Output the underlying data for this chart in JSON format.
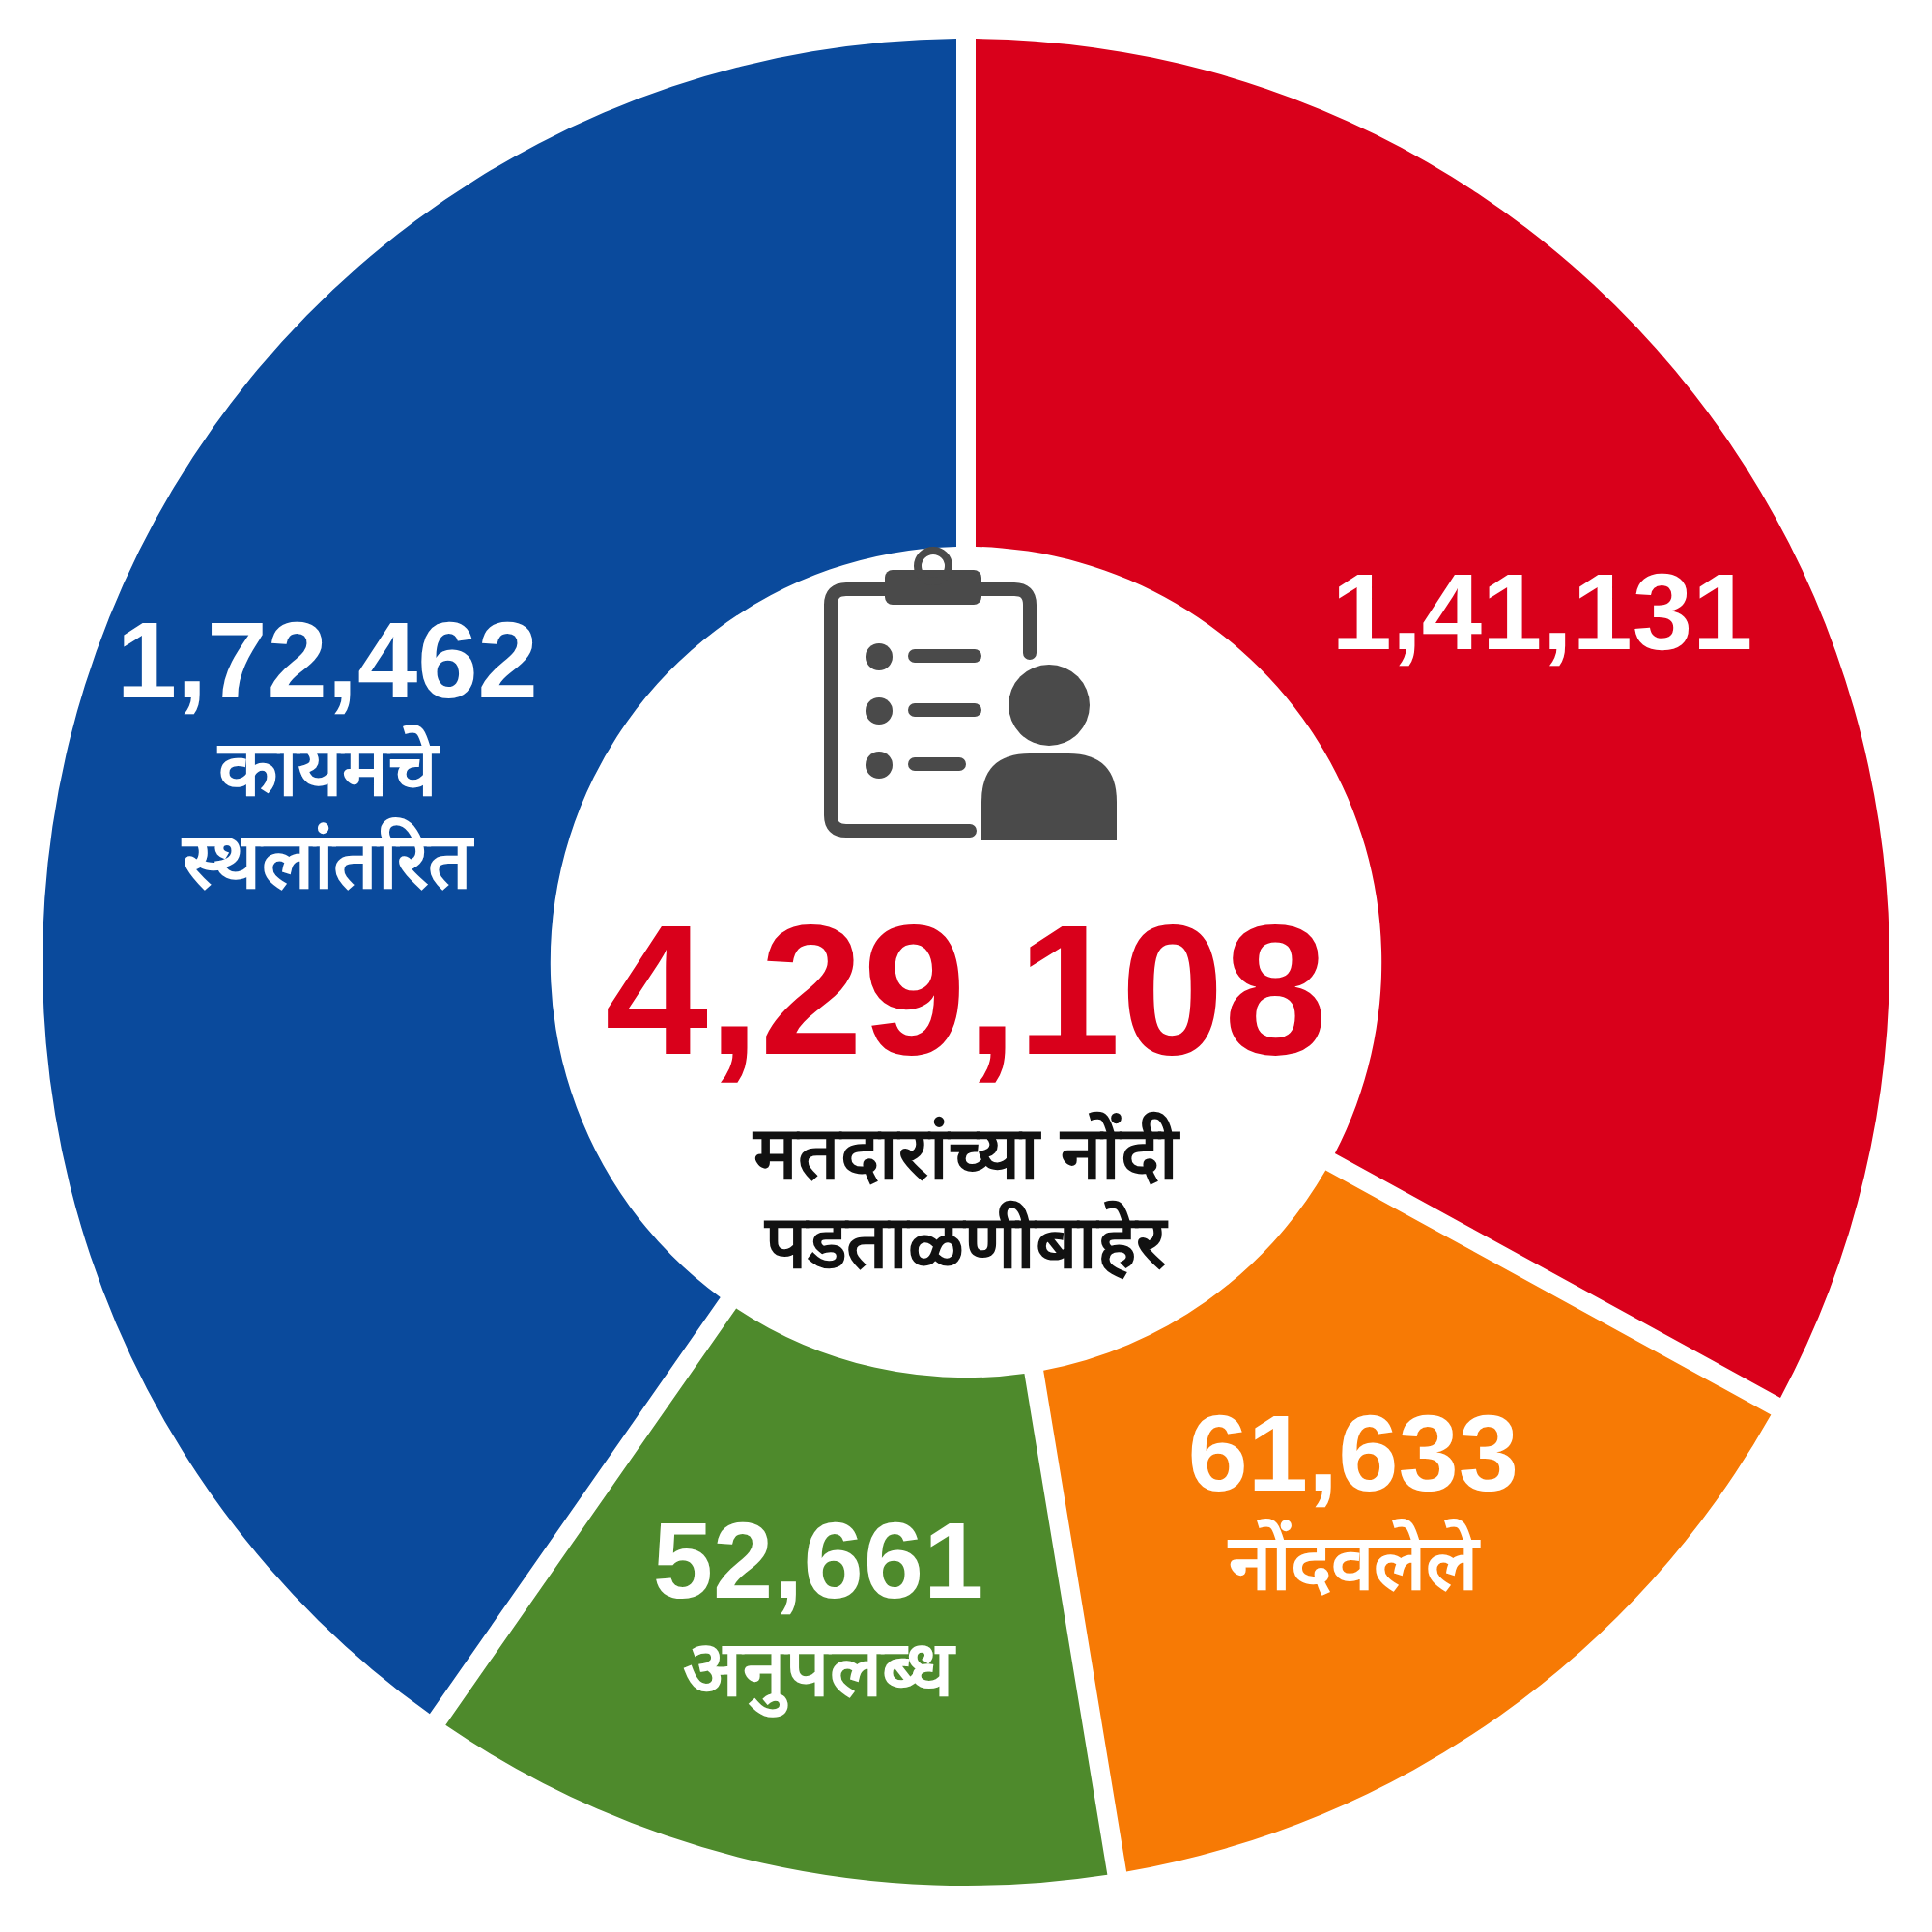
{
  "chart_data": {
    "type": "donut",
    "categories": [
      null,
      "नोंदवलेले",
      "अनुपलब्ध",
      "कायमचे स्थलांतरित"
    ],
    "values": [
      141131,
      61633,
      52661,
      172462
    ],
    "value_labels": [
      "1,41,131",
      "61,633",
      "52,661",
      "1,72,462"
    ],
    "colors": [
      "#d9001b",
      "#f77a05",
      "#4e8a2c",
      "#0a4a9c"
    ],
    "annotations": [
      "4,29,108",
      "मतदारांच्या नोंदी पडताळणीबाहेर"
    ]
  }
}
